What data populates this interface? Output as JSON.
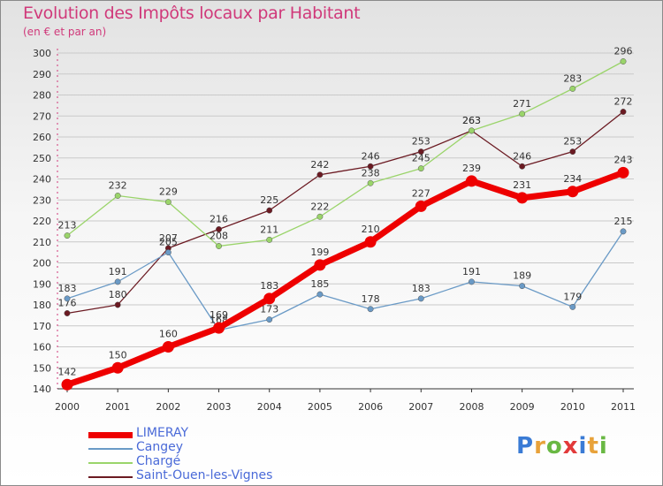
{
  "header": {
    "title": "Evolution des Impôts locaux par Habitant",
    "subtitle": "(en € et par an)"
  },
  "logo": {
    "text": "Proxiti",
    "letter_colors": [
      "#3a7bd5",
      "#e8a23a",
      "#69b843",
      "#e23a3a",
      "#3a7bd5",
      "#e8a23a",
      "#69b843"
    ]
  },
  "chart_data": {
    "type": "line",
    "x": [
      2000,
      2001,
      2002,
      2003,
      2004,
      2005,
      2006,
      2007,
      2008,
      2009,
      2010,
      2011
    ],
    "x_tick_labels": [
      "2000",
      "2001",
      "2002",
      "2003",
      "2004",
      "2005",
      "2006",
      "2007",
      "2008",
      "2009",
      "2010",
      "2011"
    ],
    "ylim": [
      140,
      300
    ],
    "y_ticks": [
      140,
      150,
      160,
      170,
      180,
      190,
      200,
      210,
      220,
      230,
      240,
      250,
      260,
      270,
      280,
      290,
      300
    ],
    "grid": "horizontal",
    "legend_position": "bottom-left",
    "series": [
      {
        "name": "Saint-Ouen-les-Vignes",
        "color": "#6b1a22",
        "values": [
          176,
          180,
          207,
          216,
          225,
          242,
          246,
          253,
          263,
          246,
          253,
          272
        ]
      },
      {
        "name": "Chargé",
        "color": "#9ad46a",
        "values": [
          213,
          232,
          229,
          208,
          211,
          222,
          238,
          245,
          263,
          271,
          283,
          296
        ]
      },
      {
        "name": "Cangey",
        "color": "#6a9ac6",
        "values": [
          183,
          191,
          205,
          168,
          173,
          185,
          178,
          183,
          191,
          189,
          179,
          215
        ]
      },
      {
        "name": "LIMERAY",
        "color": "#ee0000",
        "values": [
          142,
          150,
          160,
          169,
          183,
          199,
          210,
          227,
          239,
          231,
          234,
          243
        ]
      }
    ],
    "legend_order": [
      "LIMERAY",
      "Cangey",
      "Chargé",
      "Saint-Ouen-les-Vignes"
    ]
  }
}
